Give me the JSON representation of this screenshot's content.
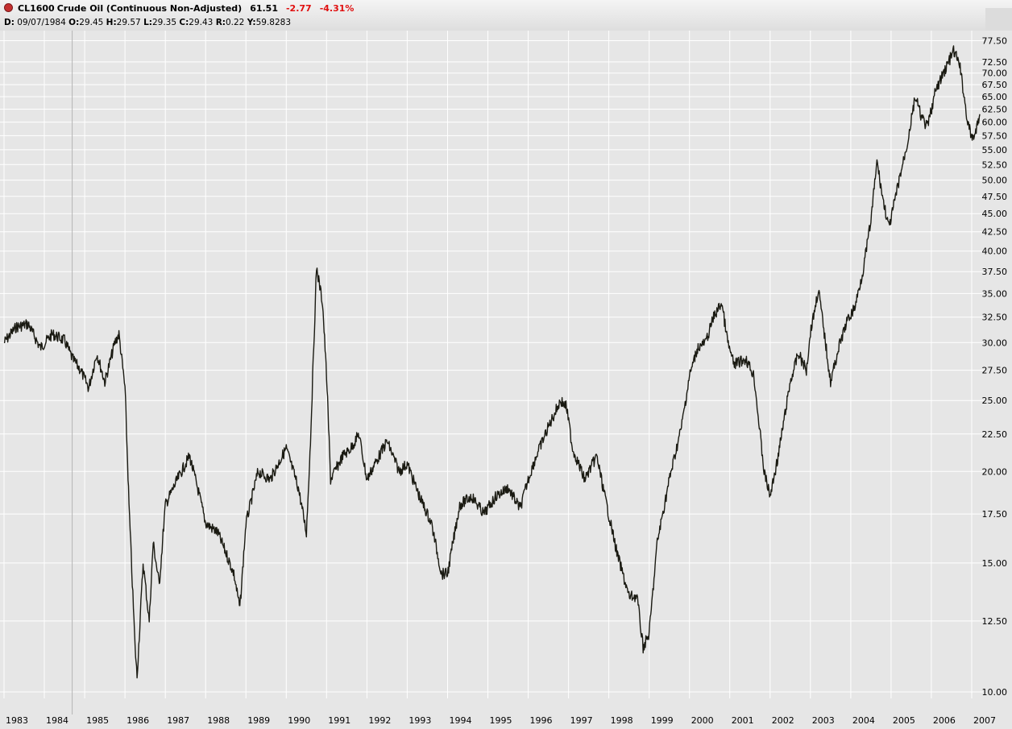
{
  "header": {
    "symbol": "CL1600",
    "title": "Crude Oil (Continuous Non-Adjusted)",
    "last": "61.51",
    "change": "-2.77",
    "change_pct": "-4.31%",
    "detail": {
      "d_label": "D:",
      "d_value": "09/07/1984",
      "o_label": "O:",
      "o_value": "29.45",
      "h_label": "H:",
      "h_value": "29.57",
      "l_label": "L:",
      "l_value": "29.35",
      "c_label": "C:",
      "c_value": "29.43",
      "r_label": "R:",
      "r_value": "0.22",
      "y_label": "Y:",
      "y_value": "59.8283"
    }
  },
  "colors": {
    "background": "#e6e6e6",
    "grid": "#ffffff",
    "price": "#1a1a12",
    "negative": "#e01010"
  },
  "chart_data": {
    "type": "line",
    "title": "CL1600 Crude Oil (Continuous Non-Adjusted)",
    "yscale": "log",
    "ylim": [
      9.8,
      80
    ],
    "xlim": [
      1982.9,
      2007.3
    ],
    "grid": true,
    "crosshair_x": 1984.69,
    "x_ticks": [
      1983,
      1984,
      1985,
      1986,
      1987,
      1988,
      1989,
      1990,
      1991,
      1992,
      1993,
      1994,
      1995,
      1996,
      1997,
      1998,
      1999,
      2000,
      2001,
      2002,
      2003,
      2004,
      2005,
      2006,
      2007
    ],
    "y_ticks": [
      10.0,
      12.5,
      15.0,
      17.5,
      20.0,
      22.5,
      25.0,
      27.5,
      30.0,
      32.5,
      35.0,
      37.5,
      40.0,
      42.5,
      45.0,
      47.5,
      50.0,
      52.5,
      55.0,
      57.5,
      60.0,
      62.5,
      65.0,
      67.5,
      70.0,
      72.5,
      77.5
    ],
    "y_tick_labels": [
      "10.00",
      "12.50",
      "15.00",
      "17.50",
      "20.00",
      "22.50",
      "25.00",
      "27.50",
      "30.00",
      "32.50",
      "35.00",
      "37.50",
      "40.00",
      "42.50",
      "45.00",
      "47.50",
      "50.00",
      "52.50",
      "55.00",
      "57.50",
      "60.00",
      "62.50",
      "65.00",
      "67.50",
      "70.00",
      "72.50",
      "77.50"
    ],
    "series": [
      {
        "x": [
          1983.0,
          1983.3,
          1983.6,
          1983.9,
          1984.2,
          1984.5,
          1984.7,
          1984.9,
          1985.1,
          1985.3,
          1985.5,
          1985.75,
          1985.85,
          1986.0,
          1986.1,
          1986.25,
          1986.3,
          1986.45,
          1986.6,
          1986.7,
          1986.85,
          1987.0,
          1987.3,
          1987.6,
          1987.8,
          1988.0,
          1988.3,
          1988.5,
          1988.7,
          1988.85,
          1989.0,
          1989.3,
          1989.6,
          1989.9,
          1990.0,
          1990.3,
          1990.5,
          1990.6,
          1990.75,
          1990.9,
          1991.0,
          1991.1,
          1991.4,
          1991.6,
          1991.8,
          1992.0,
          1992.2,
          1992.5,
          1992.8,
          1993.0,
          1993.3,
          1993.6,
          1993.85,
          1994.0,
          1994.3,
          1994.6,
          1994.9,
          1995.2,
          1995.5,
          1995.8,
          1996.0,
          1996.2,
          1996.5,
          1996.8,
          1996.95,
          1997.1,
          1997.4,
          1997.7,
          1997.9,
          1998.2,
          1998.5,
          1998.7,
          1998.85,
          1999.0,
          1999.2,
          1999.5,
          1999.8,
          2000.0,
          2000.2,
          2000.4,
          2000.6,
          2000.8,
          2000.95,
          2001.1,
          2001.4,
          2001.6,
          2001.85,
          2002.0,
          2002.2,
          2002.5,
          2002.7,
          2002.9,
          2003.0,
          2003.2,
          2003.5,
          2003.7,
          2003.9,
          2004.1,
          2004.3,
          2004.5,
          2004.65,
          2004.8,
          2004.95,
          2005.2,
          2005.4,
          2005.6,
          2005.75,
          2005.9,
          2006.1,
          2006.3,
          2006.55,
          2006.7,
          2006.9,
          2007.0,
          2007.1,
          2007.2
        ],
        "y": [
          30.0,
          31.5,
          31.8,
          29.5,
          30.8,
          30.2,
          28.5,
          27.5,
          26.0,
          29.0,
          26.5,
          30.0,
          30.8,
          26.0,
          18.0,
          11.5,
          10.5,
          15.0,
          12.5,
          16.0,
          14.0,
          18.0,
          19.5,
          21.0,
          19.0,
          17.0,
          16.5,
          15.5,
          14.5,
          13.0,
          17.0,
          20.0,
          19.5,
          21.0,
          21.5,
          19.0,
          16.5,
          22.0,
          38.0,
          34.0,
          27.0,
          19.5,
          21.0,
          21.5,
          22.5,
          19.5,
          20.5,
          22.0,
          20.0,
          20.5,
          18.5,
          17.0,
          14.5,
          14.5,
          18.0,
          18.5,
          17.5,
          18.5,
          19.0,
          17.8,
          19.5,
          21.0,
          23.0,
          25.0,
          24.5,
          21.5,
          19.5,
          21.0,
          18.5,
          15.5,
          13.5,
          13.5,
          11.5,
          12.0,
          16.0,
          19.5,
          23.0,
          27.0,
          29.5,
          30.0,
          32.5,
          34.0,
          30.0,
          28.0,
          28.5,
          27.0,
          20.0,
          18.5,
          21.0,
          26.5,
          29.0,
          27.5,
          31.0,
          35.5,
          26.5,
          29.5,
          32.0,
          33.5,
          37.5,
          44.0,
          53.0,
          47.0,
          43.0,
          50.0,
          56.0,
          65.0,
          61.0,
          59.0,
          66.0,
          70.0,
          75.0,
          72.0,
          60.0,
          57.0,
          58.0,
          61.5
        ]
      }
    ]
  }
}
